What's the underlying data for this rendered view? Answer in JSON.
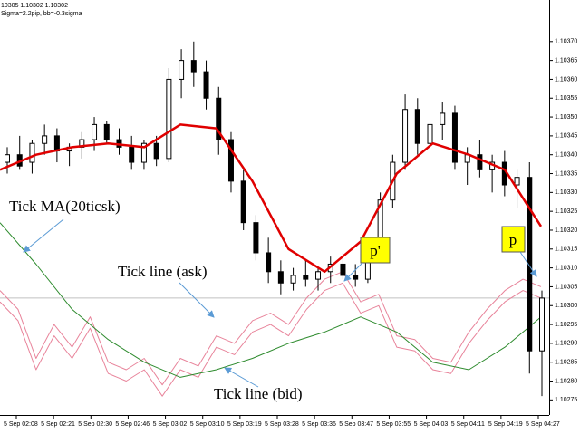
{
  "chart_data": {
    "type": "candlestick",
    "header": [
      "10305 1.10302 1.10302",
      "Sigma=2.2pip, bb=-0.3sigma"
    ],
    "ylim": [
      1.10271,
      1.10381
    ],
    "yticks": [
      1.10275,
      {
        "value": 1.1028,
        "label": "1.10280"
      },
      1.10285,
      {
        "value": 1.1029,
        "label": "1.10290"
      },
      1.10295,
      {
        "value": 1.103,
        "label": "1.10300"
      },
      1.10305,
      {
        "value": 1.1031,
        "label": "1.10310"
      },
      1.10315,
      {
        "value": 1.1032,
        "label": "1.10320"
      },
      1.10325,
      {
        "value": 1.1033,
        "label": "1.10330"
      },
      1.10335,
      {
        "value": 1.1034,
        "label": "1.10340"
      },
      1.10345,
      {
        "value": 1.1035,
        "label": "1.10350"
      },
      1.10355,
      {
        "value": 1.1036,
        "label": "1.10360"
      },
      1.10365,
      {
        "value": 1.1037,
        "label": "1.10370"
      }
    ],
    "current_price": 1.10302,
    "xlabels": [
      "5 Sep 02:08",
      "5 Sep 02:21",
      "5 Sep 02:30",
      "5 Sep 02:46",
      "5 Sep 03:02",
      "5 Sep 03:10",
      "5 Sep 03:19",
      "5 Sep 03:28",
      "5 Sep 03:36",
      "5 Sep 03:47",
      "5 Sep 03:55",
      "5 Sep 04:03",
      "5 Sep 04:11",
      "5 Sep 04:19",
      "5 Sep 04:27"
    ],
    "open": [
      1.10338,
      1.1034,
      1.10338,
      1.10343,
      1.10345,
      1.10341,
      1.10342,
      1.10344,
      1.10348,
      1.10344,
      1.10342,
      1.10338,
      1.10343,
      1.10339,
      1.1036,
      1.10365,
      1.10362,
      1.10355,
      1.10344,
      1.10333,
      1.10322,
      1.10314,
      1.10309,
      1.10306,
      1.10308,
      1.10307,
      1.10309,
      1.10311,
      1.10308,
      1.10307,
      1.10316,
      1.10328,
      1.10338,
      1.10352,
      1.10343,
      1.10348,
      1.10351,
      1.10338,
      1.1034,
      1.10336,
      1.10338,
      1.10332,
      1.10334,
      1.10288
    ],
    "high": [
      1.10342,
      1.10345,
      1.10344,
      1.10348,
      1.10347,
      1.10343,
      1.10346,
      1.1035,
      1.10349,
      1.10347,
      1.10345,
      1.10344,
      1.10345,
      1.10363,
      1.10368,
      1.1037,
      1.10365,
      1.10358,
      1.10346,
      1.10336,
      1.10324,
      1.10318,
      1.10312,
      1.1031,
      1.10312,
      1.1031,
      1.10313,
      1.10314,
      1.10311,
      1.10318,
      1.1033,
      1.1034,
      1.10356,
      1.10355,
      1.1035,
      1.10354,
      1.10353,
      1.10342,
      1.10344,
      1.1034,
      1.10341,
      1.10336,
      1.10338,
      1.10304
    ],
    "low": [
      1.10335,
      1.10336,
      1.10335,
      1.1034,
      1.10338,
      1.10337,
      1.10339,
      1.10341,
      1.10343,
      1.1034,
      1.10336,
      1.10336,
      1.10337,
      1.10338,
      1.10355,
      1.10358,
      1.10352,
      1.1034,
      1.1033,
      1.1032,
      1.10312,
      1.10306,
      1.10303,
      1.10304,
      1.10305,
      1.10304,
      1.10306,
      1.10307,
      1.10305,
      1.10306,
      1.10314,
      1.10326,
      1.10336,
      1.1034,
      1.10338,
      1.10344,
      1.10336,
      1.10332,
      1.10334,
      1.1033,
      1.10329,
      1.10326,
      1.10282,
      1.10276
    ],
    "close": [
      1.1034,
      1.10337,
      1.10343,
      1.10345,
      1.10341,
      1.10342,
      1.10344,
      1.10348,
      1.10344,
      1.10342,
      1.10338,
      1.10343,
      1.10339,
      1.1036,
      1.10365,
      1.10362,
      1.10355,
      1.10344,
      1.10333,
      1.10322,
      1.10314,
      1.10309,
      1.10306,
      1.10308,
      1.10307,
      1.10309,
      1.10311,
      1.10308,
      1.10307,
      1.10316,
      1.10328,
      1.10338,
      1.10352,
      1.10343,
      1.10348,
      1.10351,
      1.10338,
      1.1034,
      1.10336,
      1.10338,
      1.10332,
      1.10334,
      1.10288,
      1.10302
    ],
    "series": [
      {
        "name": "Tick MA(20ticsk)",
        "color": "#2e8b2e",
        "values": [
          1.10322,
          1.10311,
          1.10299,
          1.10291,
          1.10285,
          1.10281,
          1.10283,
          1.10286,
          1.1029,
          1.10293,
          1.10297,
          1.10293,
          1.10285,
          1.10283,
          1.10289,
          1.10297
        ]
      },
      {
        "name": "Tick line (ask)",
        "color": "#e8839a",
        "values": [
          1.10304,
          1.10299,
          1.10286,
          1.10295,
          1.10289,
          1.10297,
          1.10285,
          1.10283,
          1.10286,
          1.10279,
          1.10286,
          1.10284,
          1.10292,
          1.1029,
          1.10296,
          1.10298,
          1.10295,
          1.10302,
          1.10307,
          1.10309,
          1.10301,
          1.10303,
          1.10292,
          1.10291,
          1.10286,
          1.10285,
          1.10293,
          1.10299,
          1.10304,
          1.10307,
          1.10305
        ]
      },
      {
        "name": "Tick line (bid)",
        "color": "#e8839a",
        "values": [
          1.10301,
          1.10296,
          1.10283,
          1.10292,
          1.10286,
          1.10294,
          1.10282,
          1.1028,
          1.10283,
          1.10276,
          1.10283,
          1.10281,
          1.10289,
          1.10287,
          1.10293,
          1.10295,
          1.10292,
          1.10299,
          1.10304,
          1.10306,
          1.10298,
          1.103,
          1.10289,
          1.10288,
          1.10283,
          1.10282,
          1.1029,
          1.10296,
          1.10301,
          1.10304,
          1.10302
        ]
      },
      {
        "color": "#e00000",
        "values": [
          1.10336,
          1.1034,
          1.10342,
          1.10343,
          1.10342,
          1.10348,
          1.10347,
          1.10333,
          1.10315,
          1.10309,
          1.10317,
          1.10335,
          1.10343,
          1.1034,
          1.10336,
          1.10321
        ]
      }
    ],
    "annotations": [
      "p'",
      "p"
    ]
  }
}
